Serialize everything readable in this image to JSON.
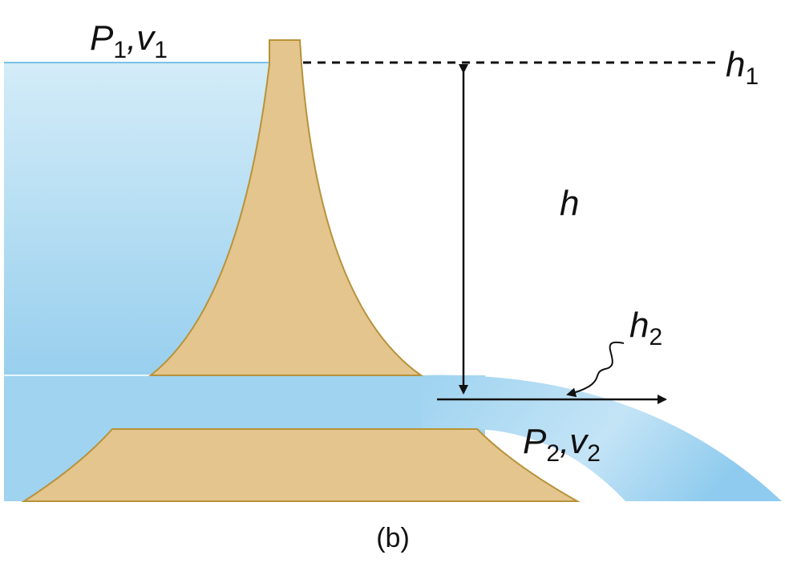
{
  "labels": {
    "inlet": [
      {
        "main": "P",
        "sub": "1"
      },
      {
        "main": ",v",
        "sub": "1"
      }
    ],
    "h1": {
      "main": "h",
      "sub": "1"
    },
    "h": "h",
    "h2": {
      "main": "h",
      "sub": "2"
    },
    "outlet": [
      {
        "main": "P",
        "sub": "2"
      },
      {
        "main": ",v",
        "sub": "2"
      }
    ]
  },
  "caption": "(b)"
}
